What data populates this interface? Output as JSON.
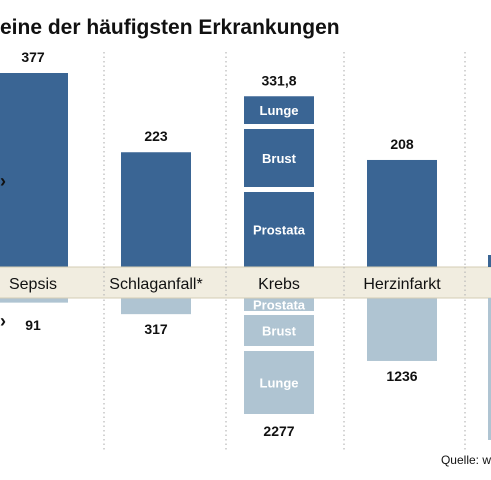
{
  "title": "eine der häufigsten Erkrankungen",
  "source": "Quelle: w",
  "chart_data": {
    "type": "bar",
    "title": "eine der häufigsten Erkrankungen",
    "categories": [
      "Sepsis",
      "Schlaganfall*",
      "Krebs",
      "Herzinfarkt"
    ],
    "series": [
      {
        "values": [
          377,
          223,
          331.8,
          208
        ],
        "labels": [
          "377",
          "223",
          "331,8",
          "208"
        ]
      },
      {
        "values": [
          91,
          317,
          2277,
          1236
        ],
        "labels": [
          "91",
          "317",
          "2277",
          "1236"
        ]
      }
    ],
    "stacks": {
      "Krebs": {
        "upper": [
          "Lunge",
          "Brust",
          "Prostata"
        ],
        "lower": [
          "Prostata",
          "Brust",
          "Lunge"
        ]
      }
    },
    "colors": {
      "upper": "#3a6594",
      "lower": "#afc4d2",
      "band": "#f1ede0",
      "band_border": "#d4cdb5",
      "dotted": "#b8b8b8"
    },
    "arrow_marker": "›"
  }
}
